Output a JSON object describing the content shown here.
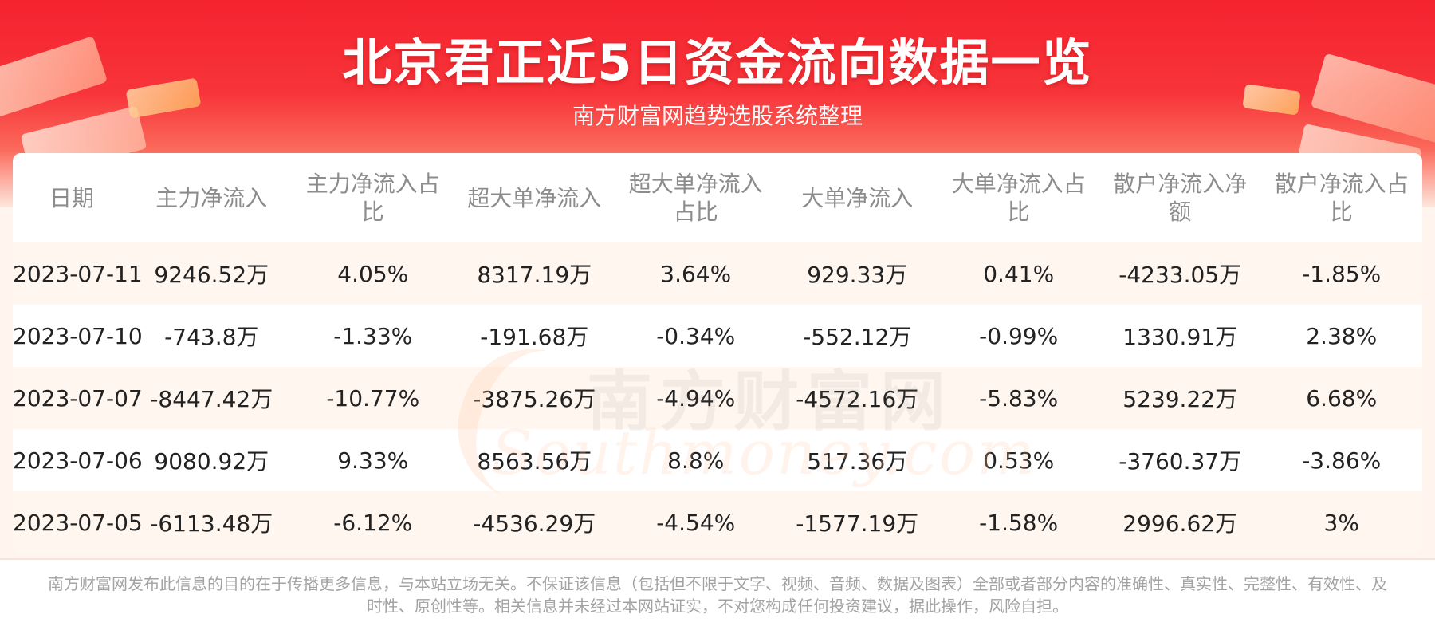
{
  "header": {
    "title": "北京君正近5日资金流向数据一览",
    "subtitle": "南方财富网趋势选股系统整理"
  },
  "watermark": {
    "cn": "南方财富网",
    "en": "Southmoney.com"
  },
  "table": {
    "columns": [
      "日期",
      "主力净流入",
      "主力净流入占比",
      "超大单净流入",
      "超大单净流入占比",
      "大单净流入",
      "大单净流入占比",
      "散户净流入净额",
      "散户净流入占比"
    ],
    "rows": [
      [
        "2023-07-11",
        "9246.52万",
        "4.05%",
        "8317.19万",
        "3.64%",
        "929.33万",
        "0.41%",
        "-4233.05万",
        "-1.85%"
      ],
      [
        "2023-07-10",
        "-743.8万",
        "-1.33%",
        "-191.68万",
        "-0.34%",
        "-552.12万",
        "-0.99%",
        "1330.91万",
        "2.38%"
      ],
      [
        "2023-07-07",
        "-8447.42万",
        "-10.77%",
        "-3875.26万",
        "-4.94%",
        "-4572.16万",
        "-5.83%",
        "5239.22万",
        "6.68%"
      ],
      [
        "2023-07-06",
        "9080.92万",
        "9.33%",
        "8563.56万",
        "8.8%",
        "517.36万",
        "0.53%",
        "-3760.37万",
        "-3.86%"
      ],
      [
        "2023-07-05",
        "-6113.48万",
        "-6.12%",
        "-4536.29万",
        "-4.54%",
        "-1577.19万",
        "-1.58%",
        "2996.62万",
        "3%"
      ]
    ]
  },
  "footer": {
    "disclaimer": "南方财富网发布此信息的目的在于传播更多信息，与本站立场无关。不保证该信息（包括但不限于文字、视频、音频、数据及图表）全部或者部分内容的准确性、真实性、完整性、有效性、及时性、原创性等。相关信息并未经过本网站证实，不对您构成任何投资建议，据此操作，风险自担。"
  },
  "colors": {
    "banner_red": "#f5232f",
    "row_stripe": "#fff6ef",
    "header_text": "#8c8c8c",
    "cell_text": "#222222"
  }
}
